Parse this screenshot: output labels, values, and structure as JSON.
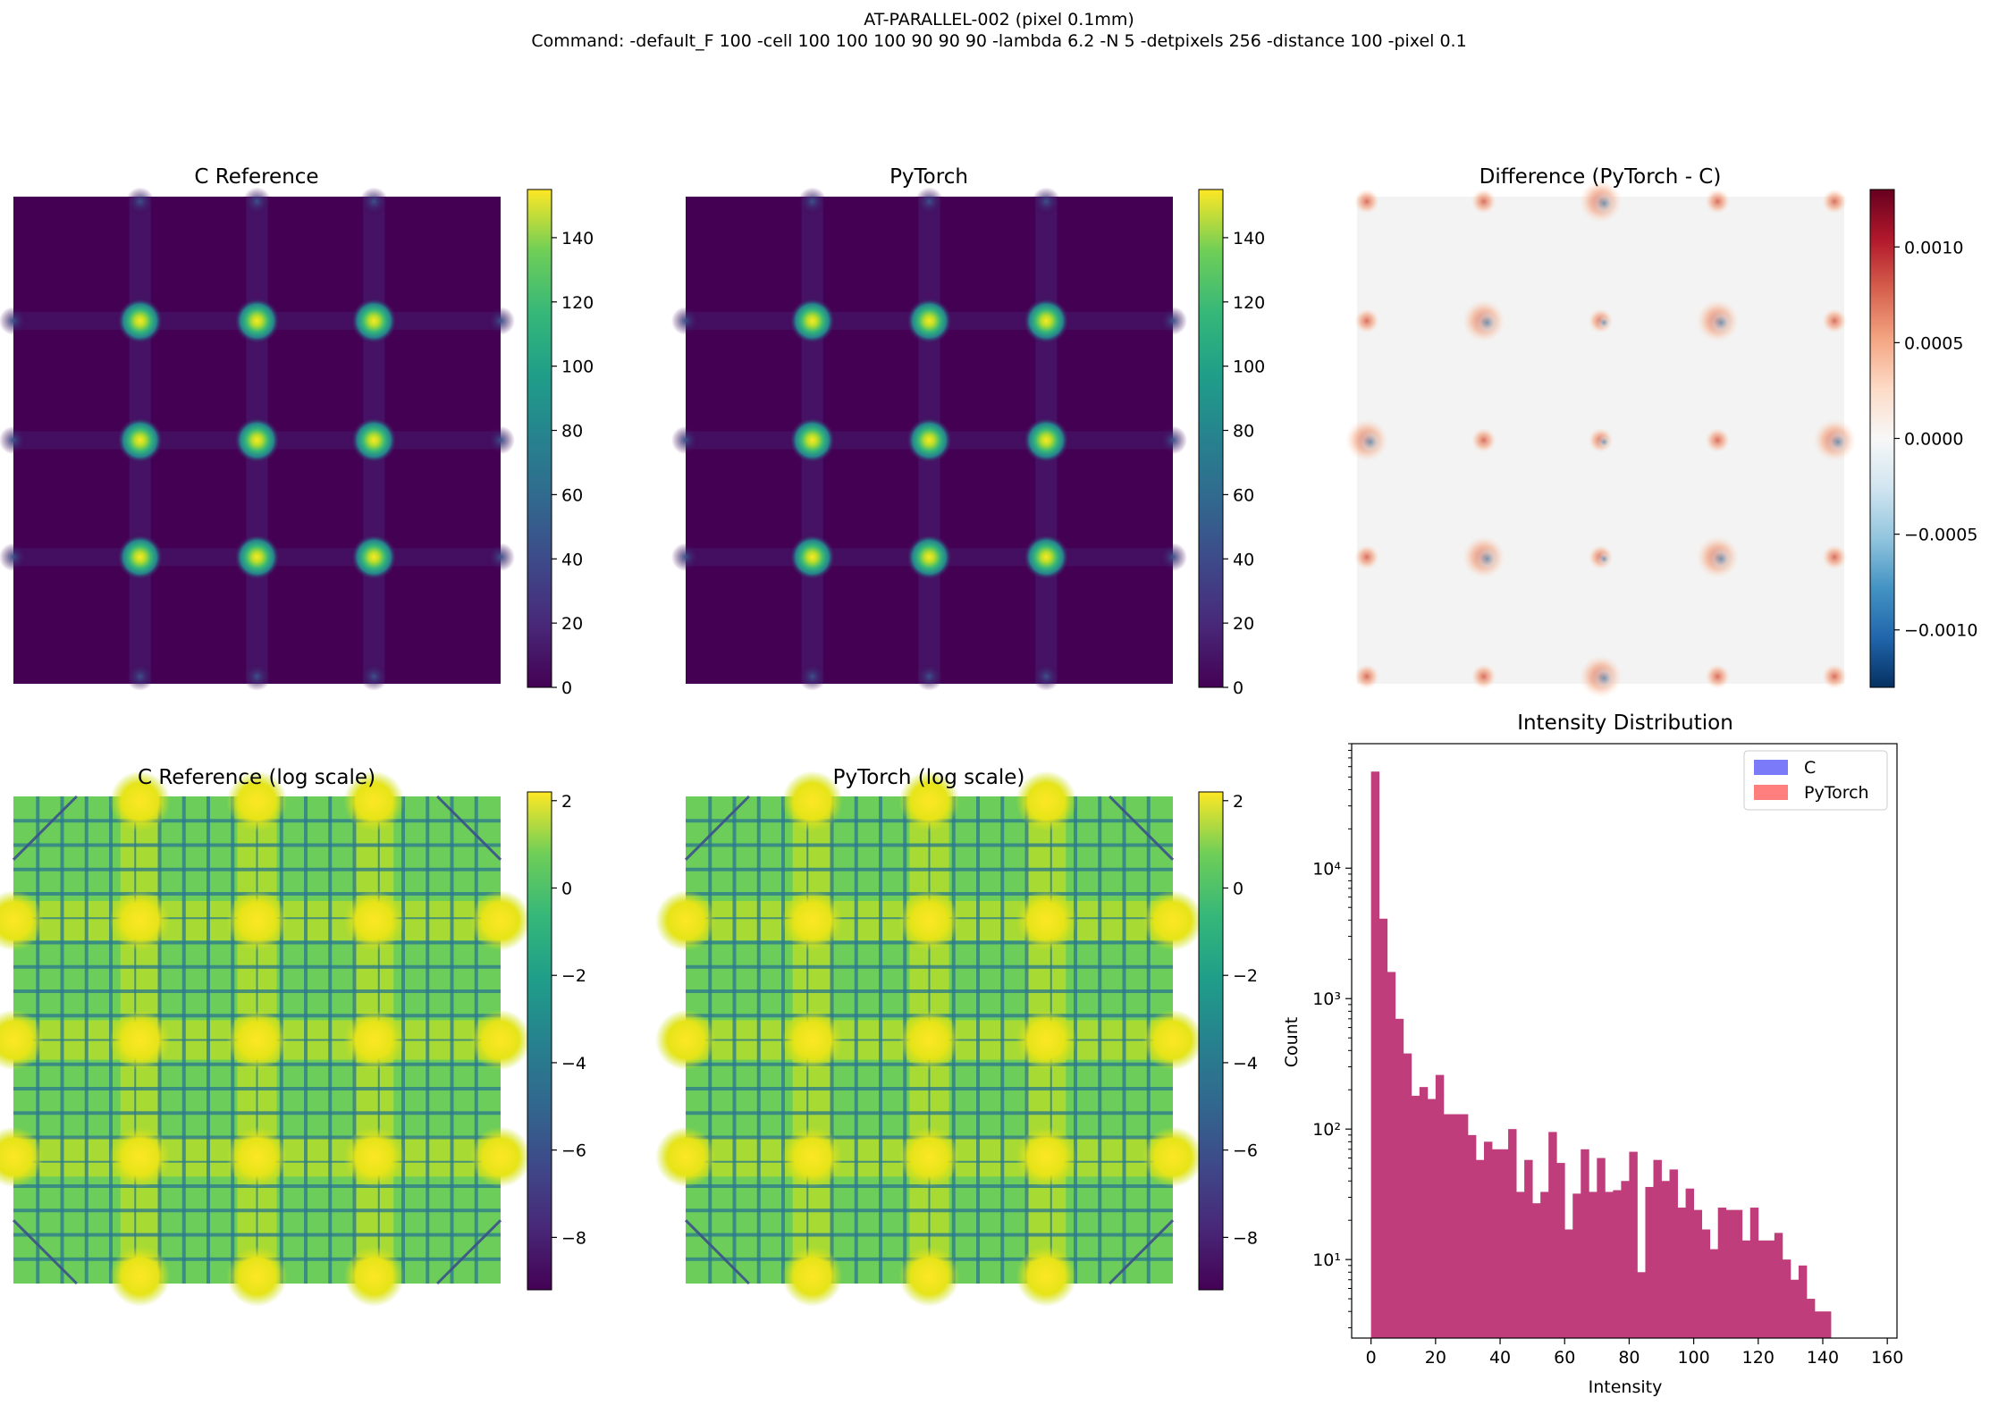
{
  "suptitle": {
    "line1": "AT-PARALLEL-002 (pixel 0.1mm)",
    "line2": "Command: -default_F 100 -cell 100 100 100 90 90 90 -lambda 6.2 -N 5 -detpixels 256 -distance 100 -pixel 0.1"
  },
  "chart_data": [
    {
      "type": "heatmap",
      "title": "C Reference",
      "colormap": "viridis",
      "colorbar": {
        "range": [
          0,
          155
        ],
        "ticks": [
          0,
          20,
          40,
          60,
          80,
          100,
          120,
          140
        ]
      },
      "axes_visible": false
    },
    {
      "type": "heatmap",
      "title": "PyTorch",
      "colormap": "viridis",
      "colorbar": {
        "range": [
          0,
          155
        ],
        "ticks": [
          0,
          20,
          40,
          60,
          80,
          100,
          120,
          140
        ]
      },
      "axes_visible": false
    },
    {
      "type": "heatmap",
      "title": "Difference (PyTorch - C)",
      "colormap": "RdBu_r",
      "colorbar": {
        "range": [
          -0.0013,
          0.0013
        ],
        "ticks": [
          -0.001,
          -0.0005,
          0.0,
          0.0005,
          0.001
        ],
        "tick_labels": [
          "−0.0010",
          "−0.0005",
          "0.0000",
          "0.0005",
          "0.0010"
        ]
      },
      "axes_visible": false
    },
    {
      "type": "heatmap",
      "title": "C Reference (log scale)",
      "colormap": "viridis",
      "colorbar": {
        "range": [
          -9.2,
          2.2
        ],
        "ticks": [
          -8,
          -6,
          -4,
          -2,
          0,
          2
        ],
        "tick_labels": [
          "−8",
          "−6",
          "−4",
          "−2",
          "0",
          "2"
        ]
      },
      "axes_visible": false
    },
    {
      "type": "heatmap",
      "title": "PyTorch (log scale)",
      "colormap": "viridis",
      "colorbar": {
        "range": [
          -9.2,
          2.2
        ],
        "ticks": [
          -8,
          -6,
          -4,
          -2,
          0,
          2
        ],
        "tick_labels": [
          "−8",
          "−6",
          "−4",
          "−2",
          "0",
          "2"
        ]
      },
      "axes_visible": false
    },
    {
      "type": "bar",
      "subtype": "histogram",
      "title": "Intensity Distribution",
      "xlabel": "Intensity",
      "ylabel": "Count",
      "xlim": [
        -6,
        163
      ],
      "ylim": [
        2.5,
        90000
      ],
      "yscale": "log",
      "xticks": [
        0,
        20,
        40,
        60,
        80,
        100,
        120,
        140,
        160
      ],
      "yticks": [
        10,
        100,
        1000,
        10000
      ],
      "ytick_labels": [
        "10¹",
        "10²",
        "10³",
        "10⁴"
      ],
      "bin_width": 2.5,
      "bin_start": 0,
      "legend": {
        "position": "upper right",
        "entries": [
          "C",
          "PyTorch"
        ]
      },
      "series": [
        {
          "name": "C",
          "color": "#7b7bfa",
          "alpha": 0.5
        },
        {
          "name": "PyTorch",
          "color": "#ff7f7f",
          "alpha": 0.5
        }
      ],
      "overlap_color": "#c03d7c",
      "counts": [
        55000,
        4100,
        1600,
        700,
        380,
        180,
        210,
        170,
        260,
        130,
        130,
        130,
        90,
        58,
        80,
        70,
        70,
        100,
        33,
        58,
        27,
        33,
        95,
        55,
        17,
        32,
        70,
        33,
        60,
        33,
        34,
        40,
        67,
        8,
        36,
        58,
        40,
        49,
        25,
        35,
        24,
        17,
        12,
        25,
        24,
        24,
        14,
        25,
        14,
        14,
        16,
        10,
        7,
        9,
        5,
        4,
        4
      ]
    }
  ]
}
